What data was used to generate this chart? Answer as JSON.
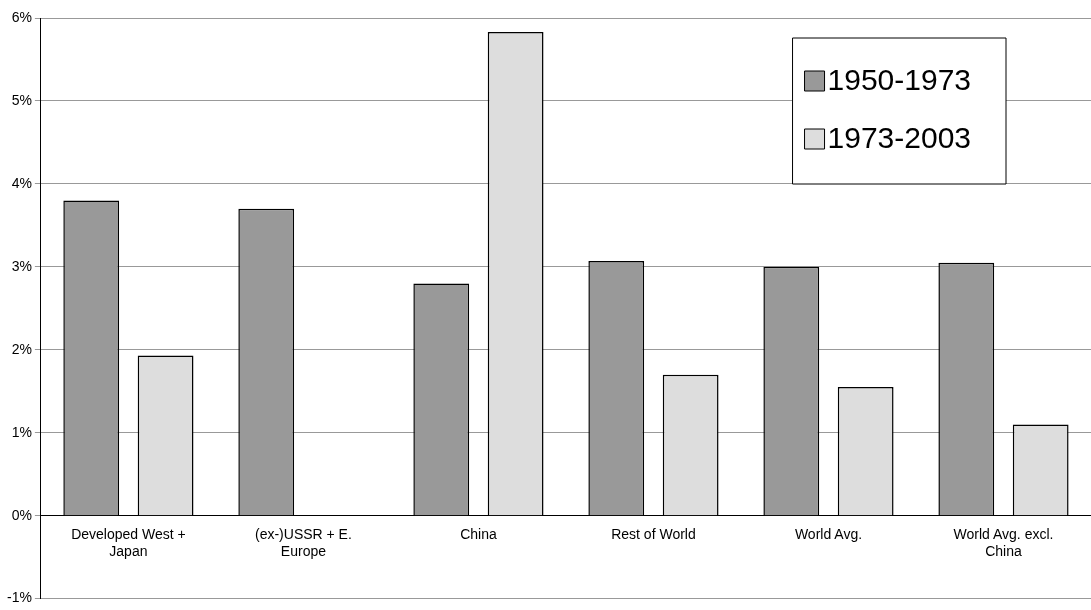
{
  "chart_data": {
    "type": "bar",
    "categories": [
      "Developed West + Japan",
      "(ex-)USSR + E. Europe",
      "China",
      "Rest of World",
      "World Avg.",
      "World Avg. excl. China"
    ],
    "series": [
      {
        "name": "1950-1973",
        "color": "#999999",
        "values": [
          3.8,
          3.7,
          2.8,
          3.07,
          3.0,
          3.05
        ]
      },
      {
        "name": "1973-2003",
        "color": "#dddddd",
        "values": [
          1.93,
          0.0,
          5.83,
          1.7,
          1.55,
          1.1
        ]
      }
    ],
    "ylim": [
      -1,
      6
    ],
    "yticks": [
      {
        "value": -1,
        "label": "-1%"
      },
      {
        "value": 0,
        "label": "0%"
      },
      {
        "value": 1,
        "label": "1%"
      },
      {
        "value": 2,
        "label": "2%"
      },
      {
        "value": 3,
        "label": "3%"
      },
      {
        "value": 4,
        "label": "4%"
      },
      {
        "value": 5,
        "label": "5%"
      },
      {
        "value": 6,
        "label": "6%"
      }
    ],
    "grid": "y",
    "legend": "top right"
  }
}
